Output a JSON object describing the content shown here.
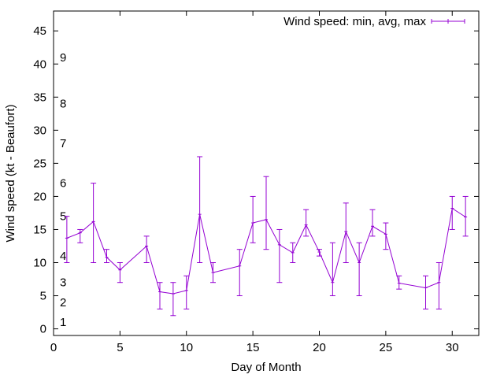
{
  "chart_data": {
    "type": "line",
    "title": "",
    "xlabel": "Day of Month",
    "ylabel": "Wind speed (kt - Beaufort)",
    "xlim": [
      0,
      32
    ],
    "ylim": [
      -1,
      48
    ],
    "xticks": [
      0,
      5,
      10,
      15,
      20,
      25,
      30
    ],
    "yticks": [
      0,
      5,
      10,
      15,
      20,
      25,
      30,
      35,
      40,
      45
    ],
    "grid": false,
    "legend_position": "top-right",
    "series": [
      {
        "name": "Wind speed: min, avg, max",
        "color": "#9400d3",
        "points": [
          {
            "x": 1,
            "y": 13.7,
            "min": 10,
            "max": 17
          },
          {
            "x": 2,
            "y": 14.5,
            "min": 13,
            "max": 15
          },
          {
            "x": 3,
            "y": 16.2,
            "min": 10,
            "max": 22
          },
          {
            "x": 4,
            "y": 10.8,
            "min": 10,
            "max": 12
          },
          {
            "x": 5,
            "y": 8.9,
            "min": 7,
            "max": 10
          },
          {
            "x": 7,
            "y": 12.5,
            "min": 10,
            "max": 14
          },
          {
            "x": 8,
            "y": 5.6,
            "min": 3,
            "max": 7
          },
          {
            "x": 9,
            "y": 5.3,
            "min": 2,
            "max": 7
          },
          {
            "x": 10,
            "y": 5.8,
            "min": 3,
            "max": 8
          },
          {
            "x": 11,
            "y": 17.3,
            "min": 10,
            "max": 26
          },
          {
            "x": 12,
            "y": 8.5,
            "min": 7,
            "max": 10
          },
          {
            "x": 14,
            "y": 9.5,
            "min": 5,
            "max": 12
          },
          {
            "x": 15,
            "y": 16.0,
            "min": 13,
            "max": 20
          },
          {
            "x": 16,
            "y": 16.5,
            "min": 12,
            "max": 23
          },
          {
            "x": 17,
            "y": 12.7,
            "min": 7,
            "max": 15
          },
          {
            "x": 18,
            "y": 11.5,
            "min": 10,
            "max": 13
          },
          {
            "x": 19,
            "y": 15.7,
            "min": 14,
            "max": 18
          },
          {
            "x": 20,
            "y": 11.6,
            "min": 11,
            "max": 12
          },
          {
            "x": 21,
            "y": 7.0,
            "min": 5,
            "max": 13
          },
          {
            "x": 22,
            "y": 14.7,
            "min": 10,
            "max": 19
          },
          {
            "x": 23,
            "y": 10.0,
            "min": 5,
            "max": 13
          },
          {
            "x": 24,
            "y": 15.5,
            "min": 14,
            "max": 18
          },
          {
            "x": 25,
            "y": 14.3,
            "min": 12,
            "max": 16
          },
          {
            "x": 26,
            "y": 6.9,
            "min": 6,
            "max": 8
          },
          {
            "x": 28,
            "y": 6.2,
            "min": 3,
            "max": 8
          },
          {
            "x": 29,
            "y": 7.0,
            "min": 3,
            "max": 10
          },
          {
            "x": 30,
            "y": 18.2,
            "min": 15,
            "max": 20
          },
          {
            "x": 31,
            "y": 16.9,
            "min": 14,
            "max": 20
          }
        ]
      }
    ],
    "annotations": [
      {
        "text": "1",
        "y": 1
      },
      {
        "text": "2",
        "y": 4
      },
      {
        "text": "3",
        "y": 7
      },
      {
        "text": "4",
        "y": 11
      },
      {
        "text": "5",
        "y": 17
      },
      {
        "text": "6",
        "y": 22
      },
      {
        "text": "7",
        "y": 28
      },
      {
        "text": "8",
        "y": 34
      },
      {
        "text": "9",
        "y": 41
      }
    ]
  }
}
